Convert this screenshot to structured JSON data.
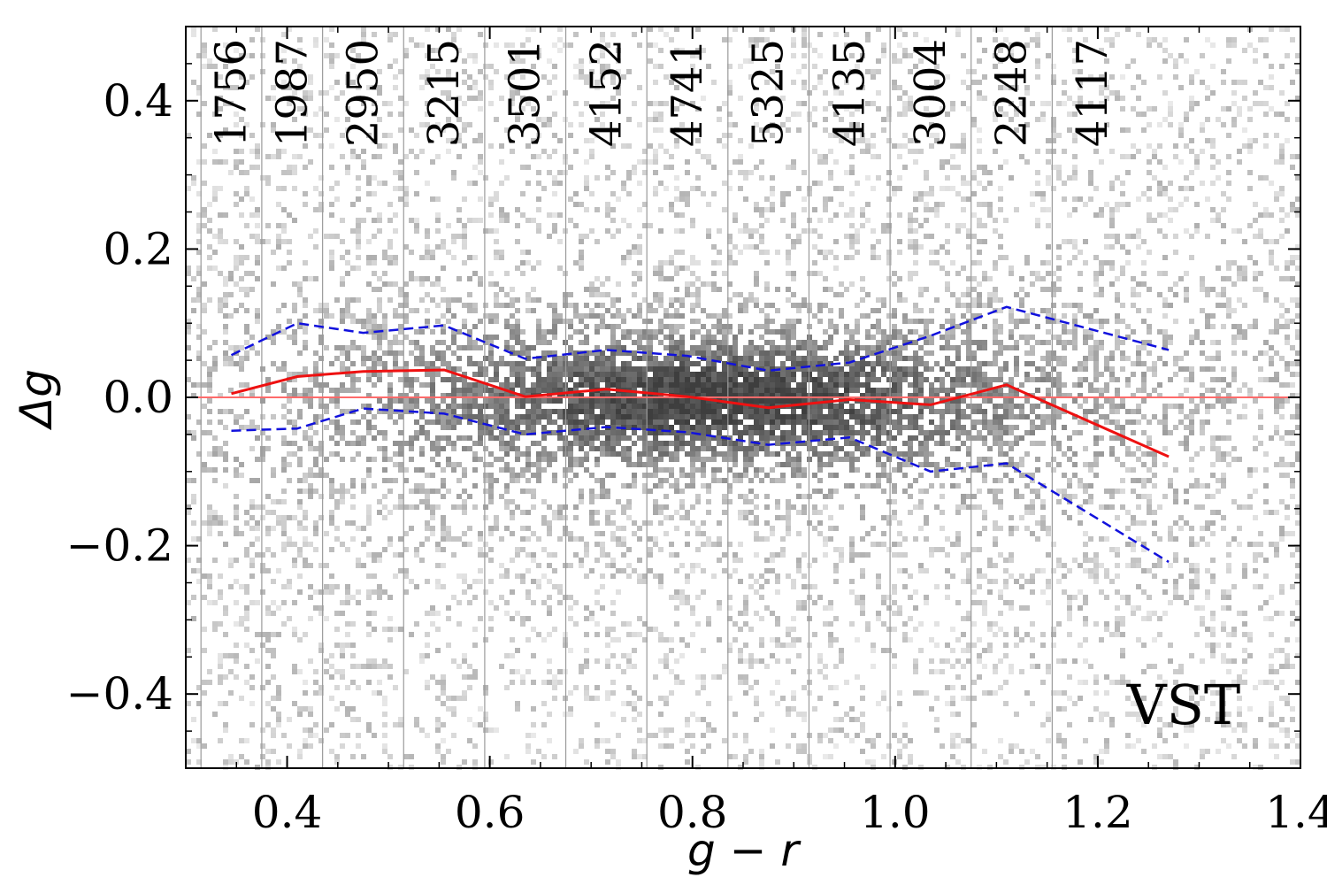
{
  "chart_data": {
    "type": "scatter",
    "xlabel": "g − r",
    "ylabel": "Δg",
    "xlim": [
      0.3,
      1.4
    ],
    "ylim": [
      -0.5,
      0.5
    ],
    "x_ticks": [
      0.4,
      0.6,
      0.8,
      1.0,
      1.2,
      1.4
    ],
    "x_tick_labels": [
      "0.4",
      "0.6",
      "0.8",
      "1.0",
      "1.2",
      "1.4"
    ],
    "y_ticks": [
      -0.4,
      -0.2,
      0.0,
      0.2,
      0.4
    ],
    "y_tick_labels": [
      "−0.4",
      "−0.2",
      "0.0",
      "0.2",
      "0.4"
    ],
    "grid": false,
    "panel_label": "VST",
    "reference_line": {
      "y": 0.0,
      "color": "#ff6b6b"
    },
    "bin_edges": [
      0.315,
      0.375,
      0.435,
      0.515,
      0.595,
      0.675,
      0.755,
      0.835,
      0.915,
      0.995,
      1.075,
      1.155
    ],
    "bin_counts": [
      "1756",
      "1987",
      "2950",
      "3215",
      "3501",
      "4152",
      "4741",
      "5325",
      "4135",
      "3004",
      "2248",
      "4117"
    ],
    "series": [
      {
        "color": "#ee1111",
        "style": "solid",
        "x": [
          0.345,
          0.41,
          0.475,
          0.555,
          0.635,
          0.715,
          0.795,
          0.875,
          0.955,
          1.035,
          1.11,
          1.27
        ],
        "values": [
          0.005,
          0.028,
          0.035,
          0.037,
          0.001,
          0.011,
          0.001,
          -0.014,
          -0.003,
          -0.01,
          0.017,
          -0.08
        ]
      },
      {
        "color": "#1111dd",
        "style": "dashed",
        "x": [
          0.345,
          0.41,
          0.475,
          0.555,
          0.635,
          0.715,
          0.795,
          0.875,
          0.955,
          1.035,
          1.11,
          1.27
        ],
        "values": [
          0.057,
          0.1,
          0.087,
          0.097,
          0.052,
          0.064,
          0.056,
          0.036,
          0.047,
          0.083,
          0.122,
          0.064
        ]
      },
      {
        "color": "#1111dd",
        "style": "dashed",
        "x": [
          0.345,
          0.41,
          0.475,
          0.555,
          0.635,
          0.715,
          0.795,
          0.875,
          0.955,
          1.035,
          1.11,
          1.27
        ],
        "values": [
          -0.045,
          -0.042,
          -0.015,
          -0.022,
          -0.05,
          -0.04,
          -0.047,
          -0.064,
          -0.054,
          -0.1,
          -0.089,
          -0.222
        ]
      }
    ],
    "density": {
      "center_x": 0.82,
      "center_y": 0.0,
      "note_colormap": "greys"
    }
  }
}
